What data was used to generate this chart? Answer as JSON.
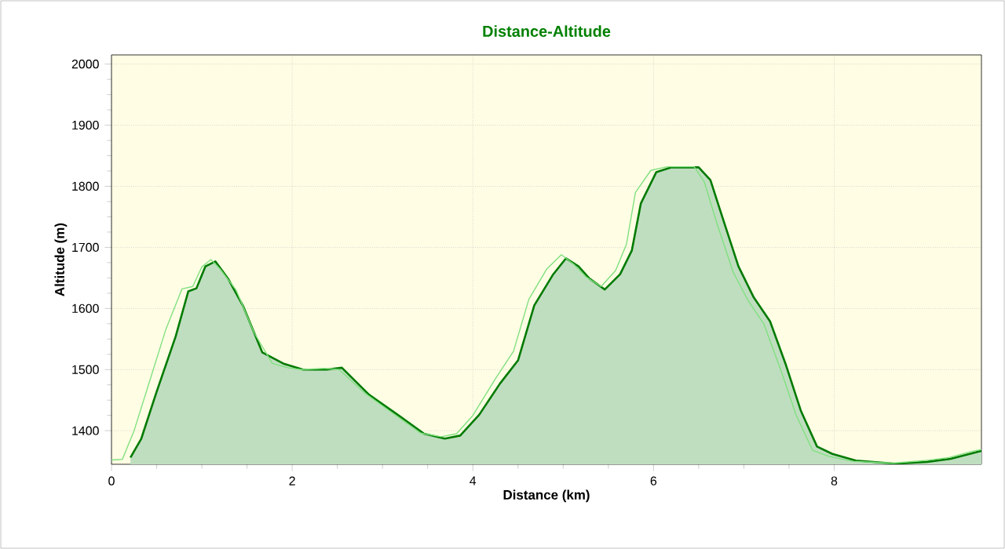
{
  "chart_data": {
    "type": "area",
    "title": "Distance-Altitude",
    "xlabel": "Distance (km)",
    "ylabel": "Altitude (m)",
    "xlim": [
      0,
      9.63
    ],
    "ylim": [
      1345,
      2015
    ],
    "xticks": [
      0,
      2,
      4,
      6,
      8
    ],
    "yticks": [
      1400,
      1500,
      1600,
      1700,
      1800,
      1900,
      2000
    ],
    "grid": true,
    "series": [
      {
        "type": "line",
        "color": "#80e080",
        "x": [
          0.0,
          0.12,
          0.25,
          0.42,
          0.6,
          0.78,
          0.9,
          1.0,
          1.1,
          1.2,
          1.38,
          1.58,
          1.78,
          1.95,
          2.1,
          2.35,
          2.52,
          2.8,
          3.1,
          3.42,
          3.65,
          3.82,
          4.0,
          4.25,
          4.45,
          4.62,
          4.82,
          4.98,
          5.12,
          5.25,
          5.42,
          5.58,
          5.7,
          5.8,
          5.97,
          6.15,
          6.45,
          6.56,
          6.7,
          6.88,
          7.05,
          7.22,
          7.4,
          7.58,
          7.76,
          7.94,
          8.2,
          8.65,
          9.0,
          9.27,
          9.52,
          9.63
        ],
        "values": [
          1352,
          1353,
          1400,
          1480,
          1565,
          1632,
          1636,
          1668,
          1680,
          1665,
          1630,
          1560,
          1510,
          1503,
          1500,
          1502,
          1500,
          1462,
          1430,
          1396,
          1390,
          1395,
          1425,
          1485,
          1530,
          1615,
          1665,
          1688,
          1672,
          1652,
          1636,
          1662,
          1705,
          1790,
          1826,
          1832,
          1832,
          1808,
          1740,
          1660,
          1612,
          1575,
          1503,
          1425,
          1368,
          1358,
          1350,
          1347,
          1351,
          1356,
          1366,
          1369
        ]
      },
      {
        "color": "#007a00",
        "x": [
          0.21,
          0.33,
          0.5,
          0.71,
          0.85,
          0.94,
          1.04,
          1.15,
          1.29,
          1.46,
          1.67,
          1.9,
          2.12,
          2.38,
          2.55,
          2.85,
          3.15,
          3.46,
          3.69,
          3.86,
          4.07,
          4.3,
          4.5,
          4.68,
          4.89,
          5.03,
          5.17,
          5.29,
          5.46,
          5.63,
          5.76,
          5.86,
          6.03,
          6.2,
          6.5,
          6.63,
          6.77,
          6.94,
          7.11,
          7.29,
          7.46,
          7.63,
          7.81,
          7.98,
          8.24,
          8.68,
          9.03,
          9.29,
          9.55,
          9.63
        ],
        "values": [
          1356,
          1387,
          1464,
          1554,
          1628,
          1633,
          1669,
          1677,
          1649,
          1603,
          1528,
          1510,
          1500,
          1500,
          1503,
          1459,
          1428,
          1395,
          1387,
          1392,
          1426,
          1477,
          1515,
          1605,
          1656,
          1682,
          1669,
          1649,
          1631,
          1656,
          1695,
          1772,
          1823,
          1831,
          1831,
          1810,
          1746,
          1669,
          1618,
          1579,
          1510,
          1433,
          1374,
          1362,
          1351,
          1346,
          1349,
          1354,
          1364,
          1367
        ]
      }
    ]
  }
}
